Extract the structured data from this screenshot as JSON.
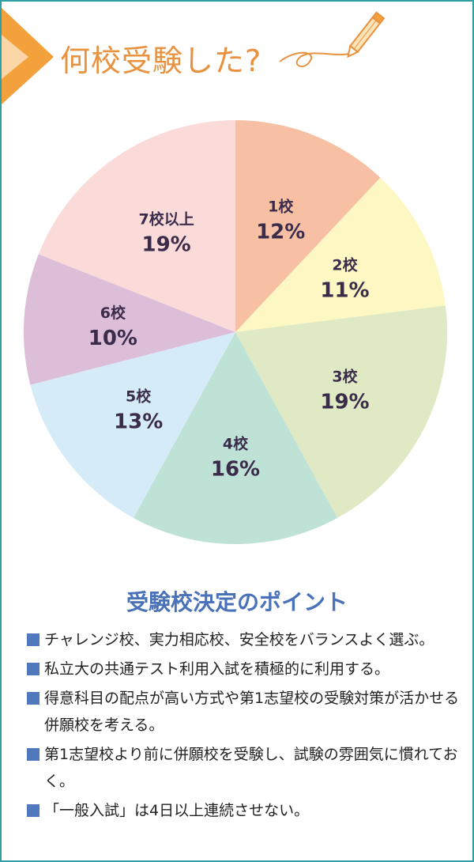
{
  "header": {
    "title": "何校受験した?"
  },
  "chart_data": {
    "type": "pie",
    "title": "何校受験した?",
    "slices": [
      {
        "label": "1校",
        "value": 12,
        "display": "12%",
        "color": "#f7c0a4"
      },
      {
        "label": "2校",
        "value": 11,
        "display": "11%",
        "color": "#fdf7c4"
      },
      {
        "label": "3校",
        "value": 19,
        "display": "19%",
        "color": "#dfe9c3"
      },
      {
        "label": "4校",
        "value": 16,
        "display": "16%",
        "color": "#bfe2d6"
      },
      {
        "label": "5校",
        "value": 13,
        "display": "13%",
        "color": "#d5ecf8"
      },
      {
        "label": "6校",
        "value": 10,
        "display": "10%",
        "color": "#dcbed9"
      },
      {
        "label": "7校以上",
        "value": 19,
        "display": "19%",
        "color": "#fadbd9"
      }
    ]
  },
  "section": {
    "title": "受験校決定のポイント",
    "points": [
      "チャレンジ校、実力相応校、安全校をバランスよく選ぶ。",
      "私立大の共通テスト利用入試を積極的に利用する。",
      "得意科目の配点が高い方式や第1志望校の受験対策が活かせる併願校を考える。",
      "第1志望校より前に併願校を受験し、試験の雰囲気に慣れておく。",
      "「一般入試」は4日以上連続させない。"
    ]
  },
  "colors": {
    "frame": "#2f9fa5",
    "header_text": "#e8923f",
    "section_title": "#4a72b8",
    "bullet": "#4f78bd"
  }
}
